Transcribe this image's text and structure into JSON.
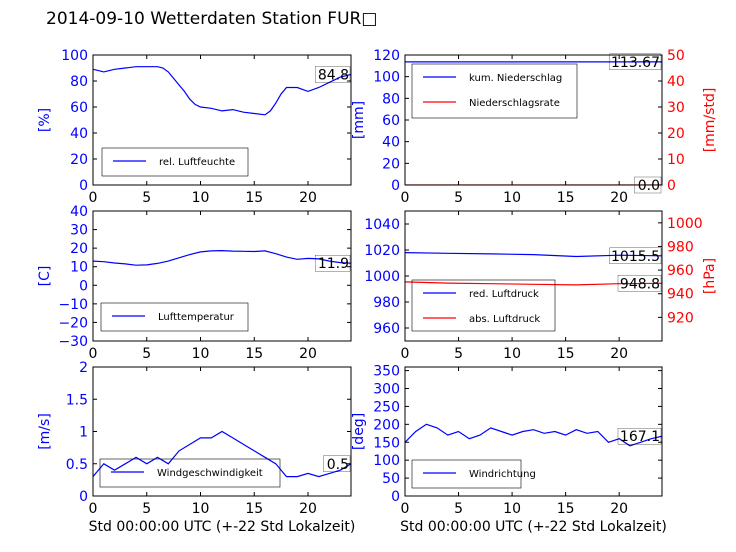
{
  "title": "2014-09-10 Wetterdaten Station FUR□",
  "colors": {
    "blue": "#0000ff",
    "red": "#ff0000",
    "black": "#000000"
  },
  "chart_data": [
    {
      "id": "humidity",
      "type": "line",
      "ylabel": "[%]",
      "xlabel": "",
      "xlim": [
        0,
        24
      ],
      "ylim": [
        0,
        100
      ],
      "xticks": [
        0,
        5,
        10,
        15,
        20
      ],
      "yticks": [
        0,
        20,
        40,
        60,
        80,
        100
      ],
      "last_value": "84.8",
      "series": [
        {
          "name": "rel. Luftfeuchte",
          "color": "#0000ff",
          "x": [
            0,
            0.5,
            1,
            2,
            3,
            4,
            5,
            6,
            6.5,
            7,
            7.5,
            8,
            8.5,
            9,
            9.5,
            10,
            11,
            12,
            13,
            14,
            15,
            16,
            16.5,
            17,
            17.5,
            18,
            19,
            20,
            21,
            22,
            23,
            24
          ],
          "y": [
            89,
            88,
            87,
            89,
            90,
            91,
            91,
            91,
            90,
            87,
            82,
            77,
            72,
            66,
            62,
            60,
            59,
            57,
            58,
            56,
            55,
            54,
            57,
            63,
            70,
            75,
            75,
            72,
            75,
            79,
            83,
            85
          ]
        }
      ]
    },
    {
      "id": "precip",
      "type": "line",
      "ylabel": "[mm]",
      "ylabel_right": "[mm/std]",
      "xlim": [
        0,
        24
      ],
      "ylim": [
        0,
        120
      ],
      "ylim_right": [
        0,
        50
      ],
      "xticks": [
        0,
        5,
        10,
        15,
        20
      ],
      "yticks": [
        0,
        20,
        40,
        60,
        80,
        100,
        120
      ],
      "yticks_right": [
        0,
        10,
        20,
        30,
        40,
        50
      ],
      "last_value": "113.67",
      "last_value_right": "0.0",
      "series": [
        {
          "name": "kum. Niederschlag",
          "color": "#0000ff",
          "axis": "left",
          "x": [
            0,
            24
          ],
          "y": [
            113.67,
            113.67
          ]
        },
        {
          "name": "Niederschlagsrate",
          "color": "#ff0000",
          "axis": "right",
          "x": [
            0,
            24
          ],
          "y": [
            0,
            0
          ]
        }
      ]
    },
    {
      "id": "temp",
      "type": "line",
      "ylabel": "[C]",
      "xlim": [
        0,
        24
      ],
      "ylim": [
        -30,
        40
      ],
      "xticks": [
        0,
        5,
        10,
        15,
        20
      ],
      "yticks": [
        -30,
        -20,
        -10,
        0,
        10,
        20,
        30,
        40
      ],
      "last_value": "11.9",
      "series": [
        {
          "name": "Lufttemperatur",
          "color": "#0000ff",
          "x": [
            0,
            1,
            2,
            3,
            4,
            5,
            6,
            7,
            8,
            9,
            10,
            11,
            12,
            13,
            14,
            15,
            16,
            17,
            18,
            19,
            20,
            21,
            22,
            23,
            24
          ],
          "y": [
            13,
            12.7,
            12,
            11.5,
            10.8,
            11,
            11.8,
            13,
            14.8,
            16.5,
            18,
            18.5,
            18.7,
            18.4,
            18.3,
            18.2,
            18.5,
            17,
            15.2,
            14,
            14.5,
            14.2,
            13,
            12.2,
            11.9
          ]
        }
      ]
    },
    {
      "id": "pressure",
      "type": "line",
      "ylabel": "",
      "ylabel_right": "[hPa]",
      "xlim": [
        0,
        24
      ],
      "ylim": [
        950,
        1050
      ],
      "ylim_right": [
        900,
        1010
      ],
      "xticks": [
        0,
        5,
        10,
        15,
        20
      ],
      "yticks": [
        960,
        980,
        1000,
        1020,
        1040
      ],
      "yticks_right": [
        920,
        940,
        960,
        980,
        1000
      ],
      "last_value": "1015.5",
      "last_value_right": "948.8",
      "series": [
        {
          "name": "red. Luftdruck",
          "color": "#0000ff",
          "axis": "left",
          "x": [
            0,
            4,
            8,
            12,
            16,
            20,
            24
          ],
          "y": [
            1018,
            1017.5,
            1017,
            1016.5,
            1015,
            1016,
            1015.5
          ]
        },
        {
          "name": "abs. Luftdruck",
          "color": "#ff0000",
          "axis": "right",
          "x": [
            0,
            4,
            8,
            12,
            16,
            20,
            24
          ],
          "y": [
            950,
            949,
            948.5,
            948,
            947.5,
            948.5,
            948.8
          ]
        }
      ]
    },
    {
      "id": "wind",
      "type": "line",
      "ylabel": "[m/s]",
      "xlabel": "Std 00:00:00 UTC (+-22 Std Lokalzeit)",
      "xlim": [
        0,
        24
      ],
      "ylim": [
        0,
        2.0
      ],
      "xticks": [
        0,
        5,
        10,
        15,
        20
      ],
      "yticks": [
        0.0,
        0.5,
        1.0,
        1.5,
        2.0
      ],
      "last_value": "0.5",
      "series": [
        {
          "name": "Windgeschwindigkeit",
          "color": "#0000ff",
          "x": [
            0,
            1,
            2,
            3,
            4,
            5,
            6,
            7,
            8,
            9,
            10,
            11,
            12,
            13,
            14,
            15,
            16,
            17,
            18,
            19,
            20,
            21,
            22,
            23,
            24
          ],
          "y": [
            0.3,
            0.5,
            0.4,
            0.5,
            0.6,
            0.5,
            0.6,
            0.5,
            0.7,
            0.8,
            0.9,
            0.9,
            1.0,
            0.9,
            0.8,
            0.7,
            0.6,
            0.5,
            0.3,
            0.3,
            0.35,
            0.3,
            0.35,
            0.4,
            0.5
          ]
        }
      ]
    },
    {
      "id": "winddir",
      "type": "line",
      "ylabel": "[deg]",
      "xlabel": "Std 00:00:00 UTC (+-22 Std Lokalzeit)",
      "xlim": [
        0,
        24
      ],
      "ylim": [
        0,
        360
      ],
      "xticks": [
        0,
        5,
        10,
        15,
        20
      ],
      "yticks": [
        0,
        50,
        100,
        150,
        200,
        250,
        300,
        350
      ],
      "last_value": "167.1",
      "series": [
        {
          "name": "Windrichtung",
          "color": "#0000ff",
          "x": [
            0,
            1,
            2,
            3,
            4,
            5,
            6,
            7,
            8,
            9,
            10,
            11,
            12,
            13,
            14,
            15,
            16,
            17,
            18,
            19,
            20,
            21,
            22,
            23,
            24
          ],
          "y": [
            150,
            180,
            200,
            190,
            170,
            180,
            160,
            170,
            190,
            180,
            170,
            180,
            185,
            175,
            180,
            170,
            185,
            175,
            180,
            150,
            160,
            140,
            150,
            160,
            167
          ]
        }
      ]
    }
  ]
}
